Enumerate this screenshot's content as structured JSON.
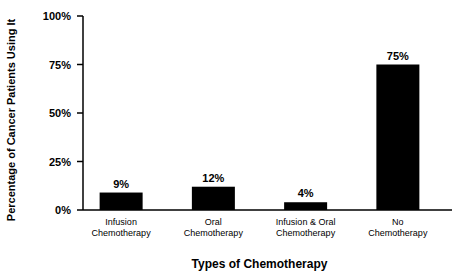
{
  "chart_data": {
    "type": "bar",
    "x_label": "Types of Chemotherapy",
    "y_label": "Percentage of Cancer Patients Using It",
    "categories": [
      "Infusion Chemotherapy",
      "Oral Chemotherapy",
      "Infusion & Oral Chemotherapy",
      "No Chemotherapy"
    ],
    "values": [
      9,
      12,
      4,
      75
    ],
    "value_labels": [
      "9%",
      "12%",
      "4%",
      "75%"
    ],
    "color": "#000000",
    "ylim": [
      0,
      100
    ],
    "yticks": [
      {
        "value": 0,
        "label": "0%"
      },
      {
        "value": 25,
        "label": "25%"
      },
      {
        "value": 50,
        "label": "50%"
      },
      {
        "value": 75,
        "label": "75%"
      },
      {
        "value": 100,
        "label": "100%"
      }
    ],
    "grid": false,
    "data_labels": true
  }
}
